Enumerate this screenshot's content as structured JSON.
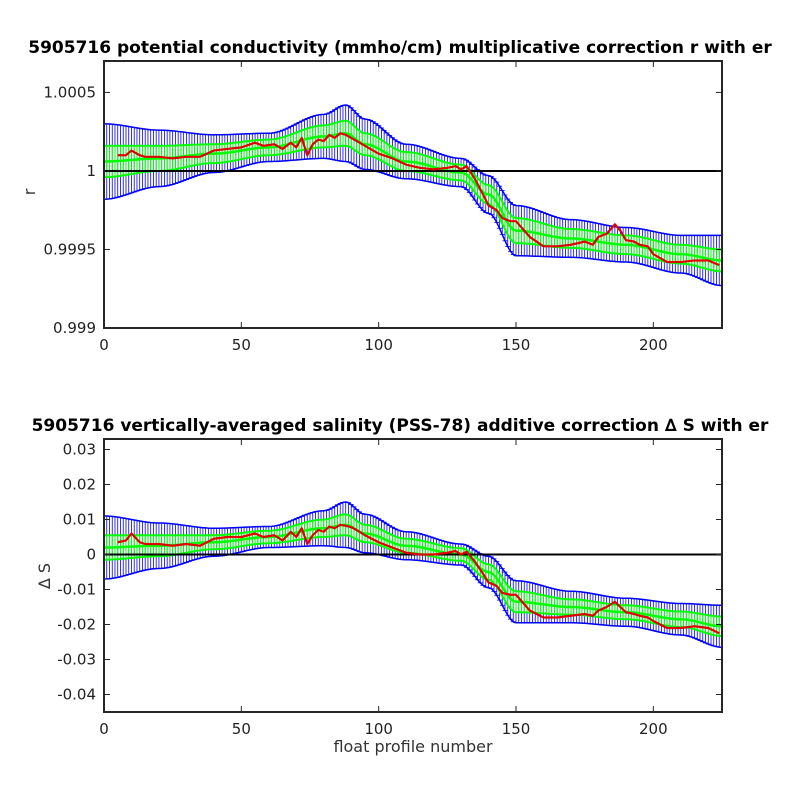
{
  "colors": {
    "background": "#ffffff",
    "axes": "#262626",
    "error_outer": "#0000ff",
    "error_inner": "#00ff00",
    "series": "#e00000",
    "reference": "#000000"
  },
  "chart_data": [
    {
      "type": "line",
      "title": "5905716 potential conductivity (mmho/cm) multiplicative correction r with er",
      "xlabel": "",
      "ylabel": "r",
      "xlim": [
        0,
        225
      ],
      "ylim": [
        0.999,
        1.0007
      ],
      "xticks": [
        0,
        50,
        100,
        150,
        200
      ],
      "xtick_labels": [
        "0",
        "50",
        "100",
        "150",
        "200"
      ],
      "yticks": [
        0.999,
        0.9995,
        1.0,
        1.0005
      ],
      "ytick_labels": [
        "0.999",
        "0.9995",
        "1",
        "1.0005"
      ],
      "grid": false,
      "reference_line": 1.0,
      "fit_x": [
        0,
        20,
        40,
        60,
        80,
        88,
        95,
        110,
        130,
        140,
        150,
        170,
        190,
        210,
        225
      ],
      "fit_center": [
        1.00006,
        1.00008,
        1.00011,
        1.00015,
        1.00022,
        1.00024,
        1.00017,
        1.00006,
        0.99999,
        0.99985,
        0.99962,
        0.99957,
        0.99953,
        0.99947,
        0.99943
      ],
      "outer_halfwidth": [
        0.00024,
        0.00018,
        0.00012,
        9e-05,
        0.00014,
        0.00018,
        0.00016,
        0.00011,
        9e-05,
        0.00012,
        0.00016,
        0.00012,
        0.00011,
        0.00012,
        0.00016
      ],
      "inner_halfwidth": [
        0.0001,
        8e-05,
        6e-05,
        5e-05,
        7e-05,
        8e-05,
        7e-05,
        6e-05,
        5e-05,
        6e-05,
        8e-05,
        6e-05,
        6e-05,
        6e-05,
        7e-05
      ],
      "series": [
        {
          "x": [
            5,
            8,
            10,
            13,
            15,
            20,
            25,
            30,
            35,
            40,
            45,
            50,
            55,
            58,
            62,
            65,
            68,
            70,
            72,
            74,
            76,
            78,
            80,
            82,
            84,
            86,
            88,
            90,
            92,
            95,
            100,
            105,
            110,
            115,
            120,
            125,
            128,
            130,
            132,
            135,
            138,
            140,
            143,
            145,
            148,
            150,
            155,
            160,
            165,
            170,
            175,
            178,
            180,
            183,
            186,
            188,
            190,
            193,
            195,
            198,
            200,
            205,
            210,
            215,
            220,
            224
          ],
          "y": [
            1.0001,
            1.0001,
            1.00013,
            1.0001,
            1.00009,
            1.00009,
            1.00008,
            1.00009,
            1.00009,
            1.00013,
            1.00014,
            1.00015,
            1.00018,
            1.00016,
            1.00017,
            1.00014,
            1.00018,
            1.00015,
            1.00021,
            1.0001,
            1.00017,
            1.0002,
            1.00019,
            1.00023,
            1.00021,
            1.00024,
            1.00023,
            1.00021,
            1.00019,
            1.00016,
            1.00011,
            1.00008,
            1.00004,
            1.00002,
            1.00001,
            1.00002,
            1.00003,
            1.00001,
            1.00003,
            0.99995,
            0.99985,
            0.99978,
            0.99975,
            0.9997,
            0.99968,
            0.99968,
            0.99958,
            0.99952,
            0.99952,
            0.99953,
            0.99955,
            0.99953,
            0.99958,
            0.9996,
            0.99966,
            0.99962,
            0.99956,
            0.99955,
            0.99953,
            0.99952,
            0.99947,
            0.99942,
            0.99942,
            0.99943,
            0.99943,
            0.9994
          ]
        }
      ]
    },
    {
      "type": "line",
      "title": "5905716 vertically-averaged salinity (PSS-78) additive correction ∆ S with er",
      "xlabel": "float profile number",
      "ylabel": "∆ S",
      "xlim": [
        0,
        225
      ],
      "ylim": [
        -0.045,
        0.033
      ],
      "xticks": [
        0,
        50,
        100,
        150,
        200
      ],
      "xtick_labels": [
        "0",
        "50",
        "100",
        "150",
        "200"
      ],
      "yticks": [
        -0.04,
        -0.03,
        -0.02,
        -0.01,
        0.0,
        0.01,
        0.02,
        0.03
      ],
      "ytick_labels": [
        "-0.04",
        "-0.03",
        "-0.02",
        "-0.01",
        "0",
        "0.01",
        "0.02",
        "0.03"
      ],
      "grid": false,
      "reference_line": 0.0,
      "fit_x": [
        0,
        20,
        40,
        60,
        80,
        88,
        95,
        110,
        130,
        140,
        150,
        170,
        190,
        210,
        225
      ],
      "fit_center": [
        0.002,
        0.0025,
        0.0035,
        0.005,
        0.0075,
        0.0085,
        0.006,
        0.0025,
        0.0,
        -0.005,
        -0.0135,
        -0.015,
        -0.0165,
        -0.0185,
        -0.0205
      ],
      "outer_halfwidth": [
        0.009,
        0.0065,
        0.004,
        0.003,
        0.005,
        0.0065,
        0.0055,
        0.004,
        0.003,
        0.0045,
        0.006,
        0.0045,
        0.004,
        0.0045,
        0.006
      ],
      "inner_halfwidth": [
        0.0035,
        0.003,
        0.002,
        0.0018,
        0.0025,
        0.003,
        0.0025,
        0.002,
        0.0018,
        0.0022,
        0.003,
        0.0022,
        0.002,
        0.0022,
        0.0028
      ],
      "series": [
        {
          "x": [
            5,
            8,
            10,
            13,
            15,
            20,
            25,
            30,
            35,
            40,
            45,
            50,
            55,
            58,
            62,
            65,
            68,
            70,
            72,
            74,
            76,
            78,
            80,
            82,
            84,
            86,
            88,
            90,
            92,
            95,
            100,
            105,
            110,
            115,
            120,
            125,
            128,
            130,
            132,
            135,
            138,
            140,
            143,
            145,
            148,
            150,
            155,
            160,
            165,
            170,
            175,
            178,
            180,
            183,
            186,
            188,
            190,
            193,
            195,
            198,
            200,
            205,
            210,
            215,
            220,
            224
          ],
          "y": [
            0.0035,
            0.004,
            0.006,
            0.0035,
            0.003,
            0.003,
            0.0025,
            0.003,
            0.0025,
            0.0045,
            0.005,
            0.005,
            0.006,
            0.005,
            0.0055,
            0.004,
            0.0065,
            0.005,
            0.0075,
            0.003,
            0.0055,
            0.007,
            0.0065,
            0.008,
            0.0075,
            0.0085,
            0.0082,
            0.0078,
            0.007,
            0.0055,
            0.0035,
            0.002,
            0.0005,
            0.0,
            0.0,
            0.0005,
            0.001,
            0.0,
            0.0008,
            -0.002,
            -0.0055,
            -0.008,
            -0.009,
            -0.011,
            -0.0115,
            -0.0115,
            -0.016,
            -0.018,
            -0.018,
            -0.0175,
            -0.017,
            -0.0175,
            -0.016,
            -0.015,
            -0.0135,
            -0.015,
            -0.0165,
            -0.017,
            -0.0175,
            -0.018,
            -0.019,
            -0.021,
            -0.021,
            -0.0205,
            -0.021,
            -0.0225
          ]
        }
      ]
    }
  ]
}
